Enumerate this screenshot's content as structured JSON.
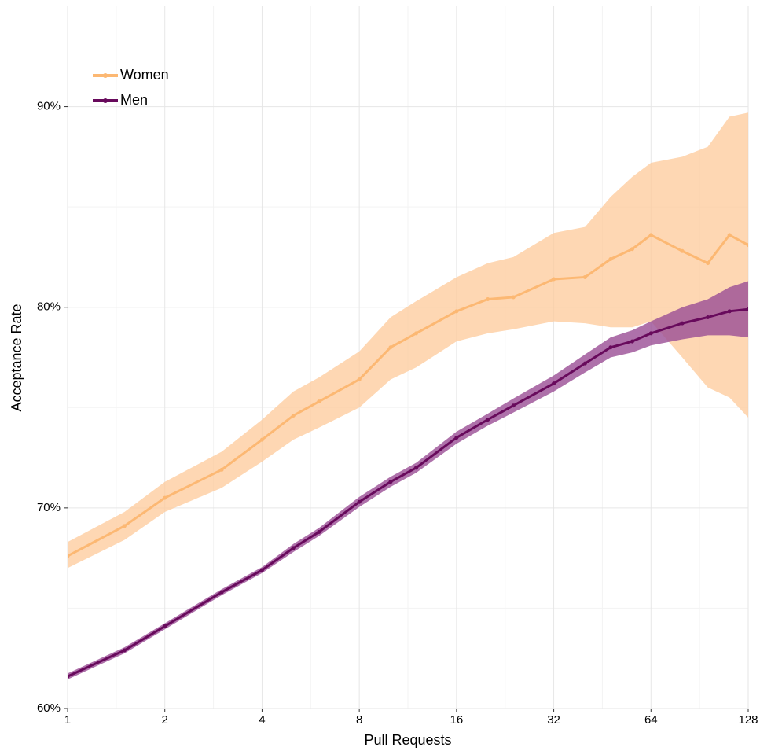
{
  "chart_data": {
    "type": "line",
    "xlabel": "Pull Requests",
    "ylabel": "Acceptance Rate",
    "xscale": "log2",
    "grid": true,
    "legend": "top-left",
    "x": [
      1,
      1.5,
      2,
      3,
      4,
      5,
      6,
      8,
      10,
      12,
      16,
      20,
      24,
      32,
      40,
      48,
      56,
      64,
      80,
      96,
      112,
      128
    ],
    "series": [
      {
        "name": "Women",
        "color": "#fcb873",
        "band_color": "#fdc99a",
        "values": [
          67.6,
          69.1,
          70.5,
          71.9,
          73.4,
          74.6,
          75.3,
          76.4,
          78.0,
          78.7,
          79.8,
          80.4,
          80.5,
          81.4,
          81.5,
          82.4,
          82.9,
          83.6,
          82.8,
          82.2,
          83.6,
          83.1
        ],
        "lower": [
          67.0,
          68.4,
          69.8,
          71.0,
          72.3,
          73.4,
          74.0,
          75.0,
          76.4,
          77.0,
          78.3,
          78.7,
          78.9,
          79.3,
          79.2,
          79.0,
          79.0,
          79.3,
          77.5,
          76.0,
          75.5,
          74.5
        ],
        "upper": [
          68.3,
          69.8,
          71.3,
          72.8,
          74.4,
          75.8,
          76.5,
          77.8,
          79.5,
          80.3,
          81.5,
          82.2,
          82.5,
          83.7,
          84.0,
          85.5,
          86.5,
          87.2,
          87.5,
          88.0,
          89.5,
          89.7
        ]
      },
      {
        "name": "Men",
        "color": "#680a5c",
        "band_color": "#9a4e95",
        "values": [
          61.6,
          62.9,
          64.1,
          65.8,
          66.9,
          68.0,
          68.8,
          70.3,
          71.3,
          72.0,
          73.5,
          74.4,
          75.1,
          76.2,
          77.2,
          78.0,
          78.3,
          78.7,
          79.2,
          79.5,
          79.8,
          79.9
        ],
        "lower": [
          61.45,
          62.75,
          63.95,
          65.65,
          66.75,
          67.8,
          68.6,
          70.05,
          71.05,
          71.75,
          73.2,
          74.1,
          74.75,
          75.8,
          76.75,
          77.5,
          77.75,
          78.1,
          78.4,
          78.6,
          78.6,
          78.5
        ],
        "upper": [
          61.75,
          63.05,
          64.25,
          65.95,
          67.05,
          68.2,
          69.0,
          70.55,
          71.55,
          72.25,
          73.8,
          74.7,
          75.45,
          76.6,
          77.65,
          78.5,
          78.85,
          79.3,
          80.0,
          80.4,
          81.0,
          81.3
        ]
      }
    ],
    "xlim": [
      1,
      128
    ],
    "xticks": [
      1,
      2,
      4,
      8,
      16,
      32,
      64,
      128
    ],
    "ylim": [
      60,
      95
    ],
    "yticks": [
      {
        "value": 60,
        "label": "60%"
      },
      {
        "value": 70,
        "label": "70%"
      },
      {
        "value": 80,
        "label": "80%"
      },
      {
        "value": 90,
        "label": "90%"
      }
    ]
  }
}
